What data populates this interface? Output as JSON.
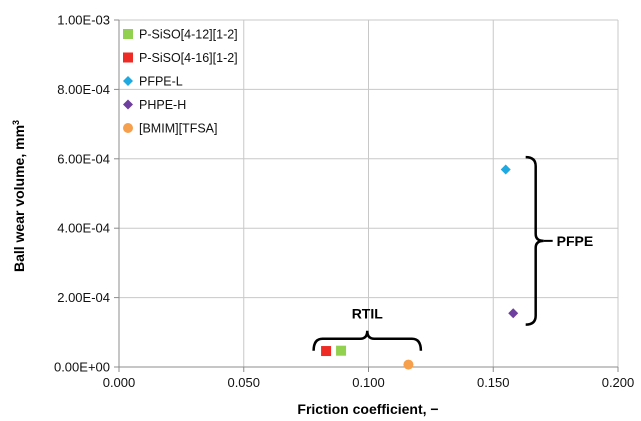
{
  "chart_data": {
    "type": "scatter",
    "title": "",
    "xlabel": "Friction coefficient, −",
    "ylabel": "Ball wear volume, mm",
    "ylabel_superscript": "3",
    "xlim": [
      0,
      0.2
    ],
    "ylim": [
      0,
      0.001
    ],
    "x_ticks": [
      0.0,
      0.05,
      0.1,
      0.15,
      0.2
    ],
    "x_tick_labels": [
      "0.000",
      "0.050",
      "0.100",
      "0.150",
      "0.200"
    ],
    "y_ticks": [
      0,
      0.0002,
      0.0004,
      0.0006,
      0.0008,
      0.001
    ],
    "y_tick_labels": [
      "0.00E+00",
      "2.00E-04",
      "4.00E-04",
      "6.00E-04",
      "8.00E-04",
      "1.00E-03"
    ],
    "grid": true,
    "legend_position": "top-left",
    "series": [
      {
        "name": "P-SiSO[4-12][1-2]",
        "color": "#92d050",
        "marker": "square",
        "points": [
          {
            "x": 0.089,
            "y": 4.7e-05
          }
        ]
      },
      {
        "name": "P-SiSO[4-16][1-2]",
        "color": "#ee2b24",
        "marker": "square",
        "points": [
          {
            "x": 0.083,
            "y": 4.6e-05
          }
        ]
      },
      {
        "name": "PFPE-L",
        "color": "#1fa9e1",
        "marker": "diamond",
        "points": [
          {
            "x": 0.155,
            "y": 0.000569
          }
        ]
      },
      {
        "name": "PHPE-H",
        "color": "#6f3fa0",
        "marker": "diamond",
        "points": [
          {
            "x": 0.158,
            "y": 0.000155
          }
        ]
      },
      {
        "name": "[BMIM][TFSA]",
        "color": "#f6a04d",
        "marker": "circle",
        "points": [
          {
            "x": 0.116,
            "y": 7e-06
          }
        ]
      }
    ],
    "annotations": [
      {
        "label": "RTIL",
        "type": "horizontal-brace",
        "x_range": [
          0.078,
          0.121
        ],
        "y": 8.15e-05
      },
      {
        "label": "PFPE",
        "type": "vertical-brace",
        "y_range": [
          0.000122,
          0.000605
        ],
        "x": 0.163
      }
    ]
  }
}
